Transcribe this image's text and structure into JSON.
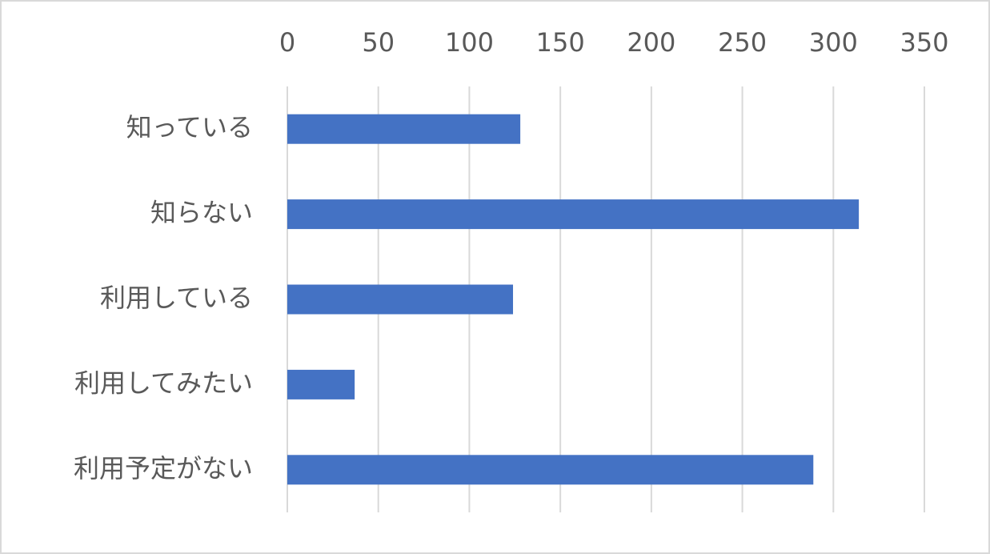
{
  "chart_data": {
    "type": "bar",
    "orientation": "horizontal",
    "categories": [
      "知っている",
      "知らない",
      "利用している",
      "利用してみたい",
      "利用予定がない"
    ],
    "values": [
      128,
      314,
      124,
      37,
      289
    ],
    "color": "#4472c4",
    "xlim": [
      0,
      350
    ],
    "xticks": [
      0,
      50,
      100,
      150,
      200,
      250,
      300,
      350
    ],
    "grid": true,
    "x_axis_position": "top"
  }
}
